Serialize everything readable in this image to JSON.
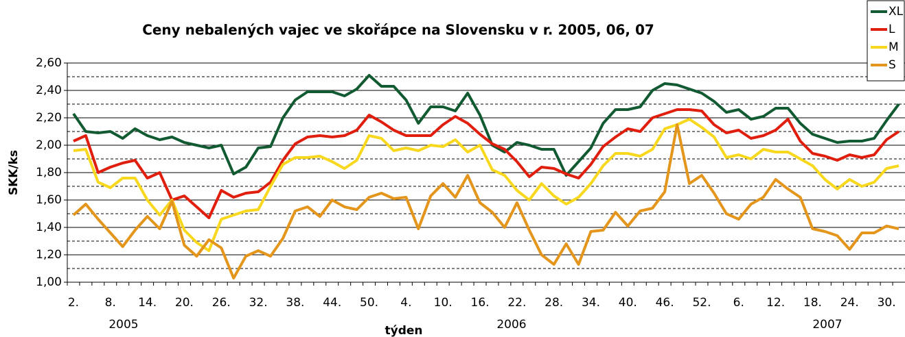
{
  "chart_data": {
    "type": "line",
    "title": "Ceny nebalených vajec ve skořápce na Slovensku v r. 2005, 06, 07",
    "y_label": "SKK/ks",
    "x_label": "týden",
    "year_labels": [
      "2005",
      "2006",
      "2007"
    ],
    "categories": [
      "2.",
      null,
      null,
      "8.",
      null,
      null,
      "14.",
      null,
      null,
      "20.",
      null,
      null,
      "26.",
      null,
      null,
      "32.",
      null,
      null,
      "38.",
      null,
      null,
      "44.",
      null,
      null,
      "50.",
      null,
      null,
      "4.",
      null,
      null,
      "10.",
      null,
      null,
      "16.",
      null,
      null,
      "22.",
      null,
      null,
      "28.",
      null,
      null,
      "34.",
      null,
      null,
      "40.",
      null,
      null,
      "46.",
      null,
      null,
      "52.",
      null,
      null,
      "6.",
      null,
      null,
      "12.",
      null,
      null,
      "18.",
      null,
      null,
      "24.",
      null,
      null,
      "30.",
      null
    ],
    "series": [
      {
        "name": "XL",
        "color": "#125a32",
        "values": [
          2.23,
          2.1,
          2.09,
          2.1,
          2.05,
          2.12,
          2.07,
          2.04,
          2.06,
          2.02,
          2.0,
          1.98,
          2.0,
          1.79,
          1.84,
          1.98,
          1.99,
          2.2,
          2.33,
          2.39,
          2.39,
          2.39,
          2.36,
          2.41,
          2.51,
          2.43,
          2.43,
          2.33,
          2.16,
          2.28,
          2.28,
          2.25,
          2.38,
          2.22,
          2.0,
          1.95,
          2.02,
          2.0,
          1.97,
          1.97,
          1.78,
          1.88,
          1.98,
          2.16,
          2.26,
          2.26,
          2.28,
          2.4,
          2.45,
          2.44,
          2.41,
          2.38,
          2.32,
          2.24,
          2.26,
          2.19,
          2.21,
          2.27,
          2.27,
          2.16,
          2.08,
          2.05,
          2.02,
          2.03,
          2.03,
          2.05,
          2.18,
          2.3
        ]
      },
      {
        "name": "L",
        "color": "#e01e0e",
        "values": [
          2.03,
          2.07,
          1.8,
          1.84,
          1.87,
          1.89,
          1.76,
          1.8,
          1.6,
          1.63,
          1.55,
          1.47,
          1.67,
          1.62,
          1.65,
          1.66,
          1.73,
          1.89,
          2.01,
          2.06,
          2.07,
          2.06,
          2.07,
          2.11,
          2.22,
          2.17,
          2.11,
          2.07,
          2.07,
          2.07,
          2.15,
          2.21,
          2.16,
          2.08,
          2.01,
          1.97,
          1.88,
          1.77,
          1.84,
          1.83,
          1.79,
          1.76,
          1.86,
          1.99,
          2.06,
          2.12,
          2.1,
          2.2,
          2.23,
          2.26,
          2.26,
          2.25,
          2.15,
          2.09,
          2.11,
          2.05,
          2.07,
          2.11,
          2.19,
          2.03,
          1.94,
          1.92,
          1.89,
          1.93,
          1.91,
          1.93,
          2.04,
          2.1
        ]
      },
      {
        "name": "M",
        "color": "#f8d81e",
        "values": [
          1.96,
          1.97,
          1.73,
          1.69,
          1.76,
          1.76,
          1.6,
          1.49,
          1.6,
          1.38,
          1.29,
          1.23,
          1.46,
          1.49,
          1.52,
          1.53,
          1.7,
          1.86,
          1.91,
          1.91,
          1.92,
          1.88,
          1.83,
          1.89,
          2.07,
          2.05,
          1.96,
          1.98,
          1.96,
          2.0,
          1.99,
          2.04,
          1.95,
          2.0,
          1.82,
          1.78,
          1.67,
          1.6,
          1.72,
          1.63,
          1.57,
          1.62,
          1.72,
          1.85,
          1.94,
          1.94,
          1.92,
          1.97,
          2.12,
          2.15,
          2.19,
          2.13,
          2.06,
          1.91,
          1.93,
          1.9,
          1.97,
          1.95,
          1.95,
          1.9,
          1.85,
          1.75,
          1.68,
          1.75,
          1.7,
          1.73,
          1.83,
          1.85
        ]
      },
      {
        "name": "S",
        "color": "#e3951c",
        "values": [
          1.49,
          1.57,
          1.46,
          1.36,
          1.26,
          1.38,
          1.48,
          1.39,
          1.59,
          1.27,
          1.19,
          1.31,
          1.25,
          1.03,
          1.19,
          1.23,
          1.19,
          1.32,
          1.52,
          1.55,
          1.48,
          1.6,
          1.55,
          1.53,
          1.62,
          1.65,
          1.61,
          1.62,
          1.39,
          1.63,
          1.72,
          1.62,
          1.78,
          1.58,
          1.51,
          1.4,
          1.58,
          1.38,
          1.2,
          1.13,
          1.28,
          1.13,
          1.37,
          1.38,
          1.51,
          1.41,
          1.52,
          1.54,
          1.66,
          2.15,
          1.72,
          1.78,
          1.65,
          1.5,
          1.46,
          1.57,
          1.62,
          1.75,
          1.68,
          1.62,
          1.39,
          1.37,
          1.34,
          1.24,
          1.36,
          1.36,
          1.41,
          1.39
        ]
      }
    ],
    "ylim": [
      1.0,
      2.6
    ],
    "yticks": [
      {
        "value": 1.0,
        "label": "1,00"
      },
      {
        "value": 1.2,
        "label": "1,20"
      },
      {
        "value": 1.4,
        "label": "1,40"
      },
      {
        "value": 1.6,
        "label": "1,60"
      },
      {
        "value": 1.8,
        "label": "1,80"
      },
      {
        "value": 2.0,
        "label": "2,00"
      },
      {
        "value": 2.2,
        "label": "2,20"
      },
      {
        "value": 2.4,
        "label": "2,40"
      },
      {
        "value": 2.6,
        "label": "2,60"
      }
    ],
    "minor_yticks": [
      1.1,
      1.3,
      1.5,
      1.7,
      1.9,
      2.1,
      2.3,
      2.5
    ],
    "grid": true,
    "legend": "top-right"
  }
}
